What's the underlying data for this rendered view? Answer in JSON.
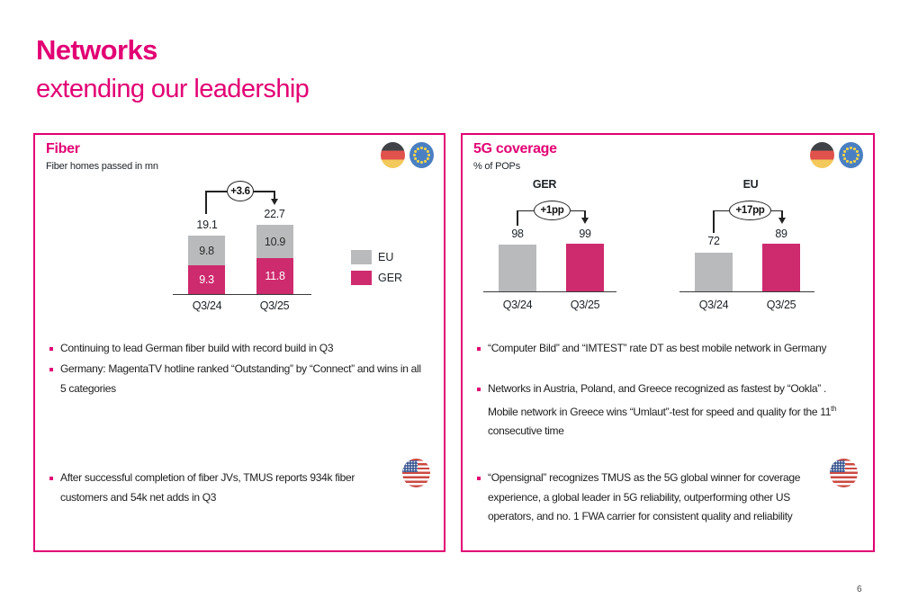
{
  "page": {
    "title_bold": "Networks",
    "title_sub": "extending our leadership",
    "page_number": "6"
  },
  "colors": {
    "magenta_accent": "#e20074",
    "bar_magenta": "#ce2a6e",
    "bar_gray": "#b9babb",
    "text_dark": "#1d2328"
  },
  "fiber_panel": {
    "title": "Fiber",
    "subtitle": "Fiber homes passed in mn",
    "flags": [
      "germany-flag",
      "eu-flag"
    ],
    "bullets": [
      "Continuing to lead German fiber build with record build in Q3",
      "Germany: MagentaTV hotline ranked “Outstanding” by “Connect” and wins in all 5 categories"
    ],
    "us_bullet": "After successful completion of fiber JVs, TMUS reports 934k fiber customers and 54k net adds in Q3"
  },
  "coverage_panel": {
    "title": "5G coverage",
    "subtitle": "% of POPs",
    "flags": [
      "germany-flag",
      "eu-flag"
    ],
    "bullets": [
      {
        "text": "“Computer Bild” and “IMTEST” rate DT as best mobile network in Germany"
      },
      {
        "text_before": "Networks in Austria, Poland, and Greece recognized as fastest by “Ookla” . Mobile network in Greece wins “Umlaut”-test for speed and quality for the 11",
        "sup": "th",
        "text_after": " consecutive time"
      }
    ],
    "us_bullet": "“Opensignal” recognizes TMUS as the 5G global winner for coverage experience, a global leader in 5G reliability, outperforming other US operators, and no. 1 FWA carrier for consistent quality and reliability"
  },
  "chart_data": [
    {
      "type": "bar",
      "subtype": "stacked",
      "title": "Fiber homes passed in mn",
      "categories": [
        "Q3/24",
        "Q3/25"
      ],
      "series": [
        {
          "name": "GER",
          "values": [
            9.3,
            11.8
          ],
          "color": "#ce2a6e"
        },
        {
          "name": "EU",
          "values": [
            9.8,
            10.9
          ],
          "color": "#b9babb"
        }
      ],
      "totals": [
        "19.1",
        "22.7"
      ],
      "delta_label": "+3.6",
      "legend_position": "right",
      "grid": false
    },
    {
      "type": "bar",
      "subtype": "grouped-pairs",
      "title": "5G coverage, % of POPs",
      "categories": [
        "Q3/24",
        "Q3/25"
      ],
      "groups": [
        {
          "name": "GER",
          "delta_label": "+1pp",
          "values": [
            98,
            99
          ]
        },
        {
          "name": "EU",
          "delta_label": "+17pp",
          "values": [
            72,
            89
          ]
        }
      ],
      "bar_colors": [
        "#b9babb",
        "#ce2a6e"
      ],
      "grid": false
    }
  ]
}
